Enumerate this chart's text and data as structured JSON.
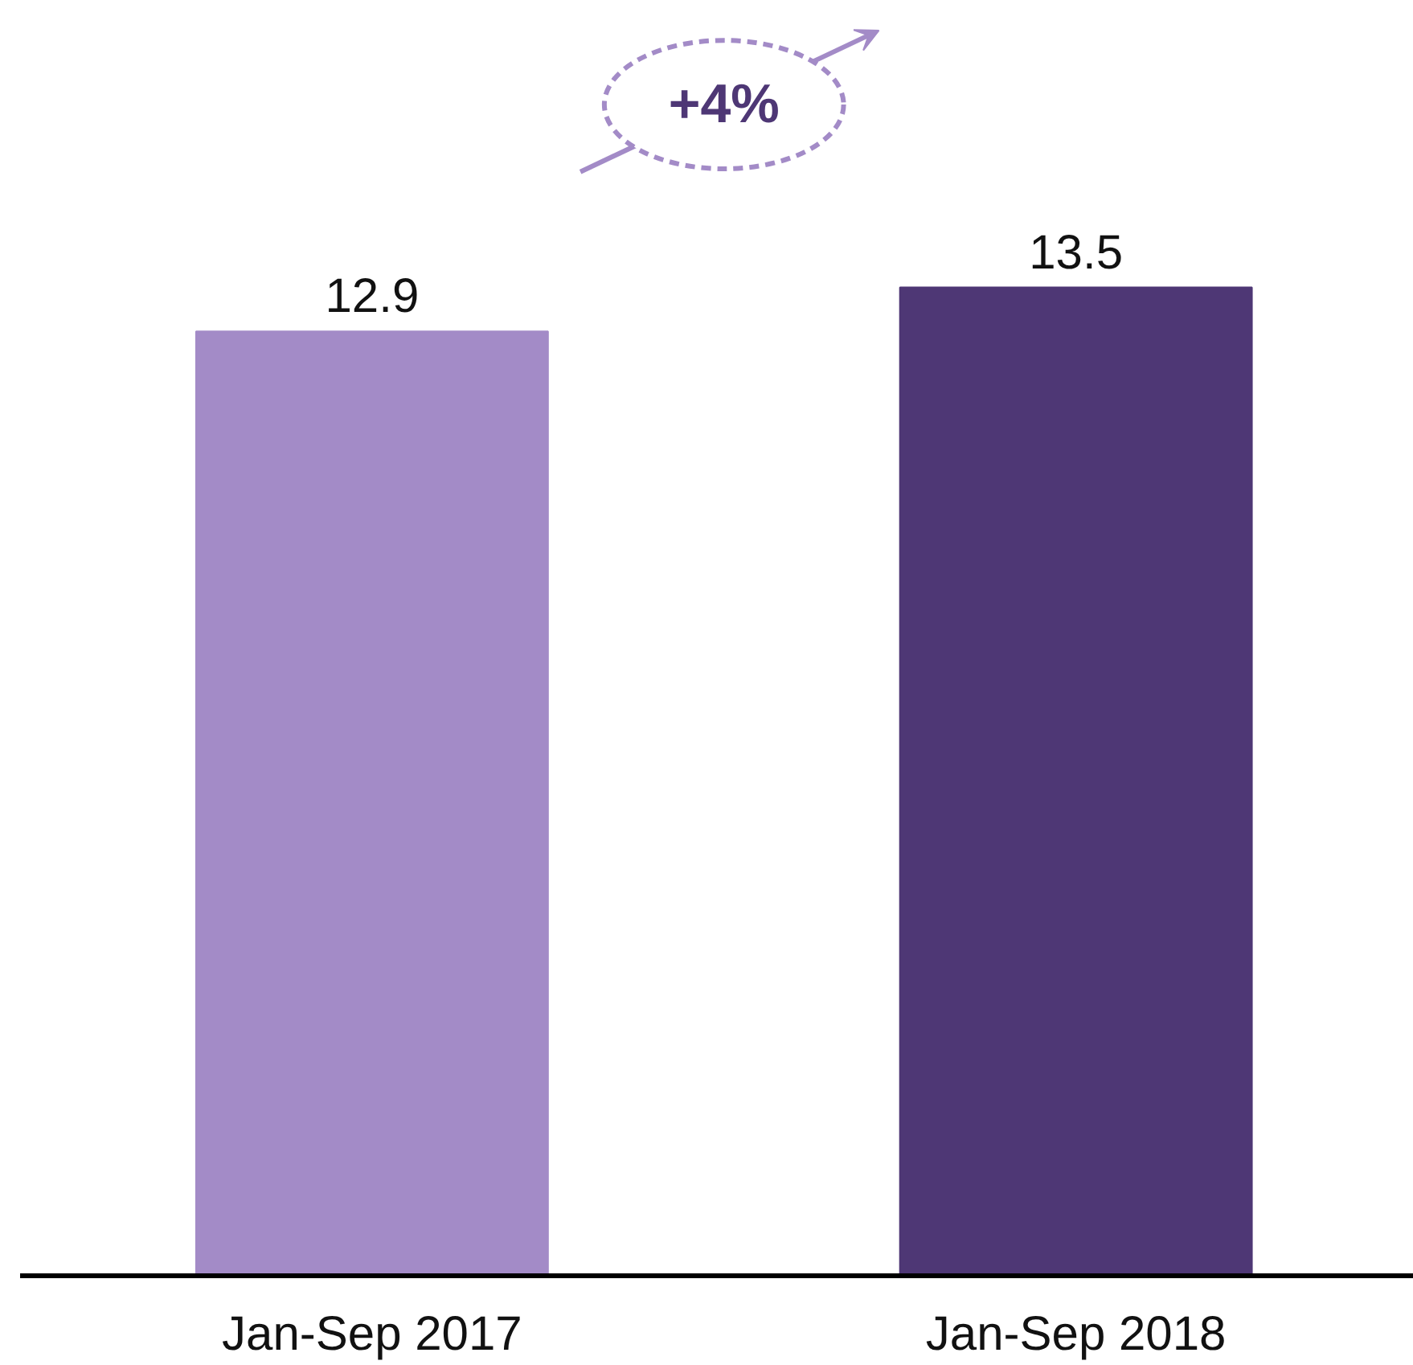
{
  "chart_data": {
    "type": "bar",
    "categories": [
      "Jan-Sep 2017",
      "Jan-Sep 2018"
    ],
    "values": [
      12.9,
      13.5
    ],
    "colors": [
      "#a38bc7",
      "#4e3775"
    ],
    "data_labels": true,
    "tick_labels": "x",
    "annotations": [
      "+4%"
    ]
  }
}
